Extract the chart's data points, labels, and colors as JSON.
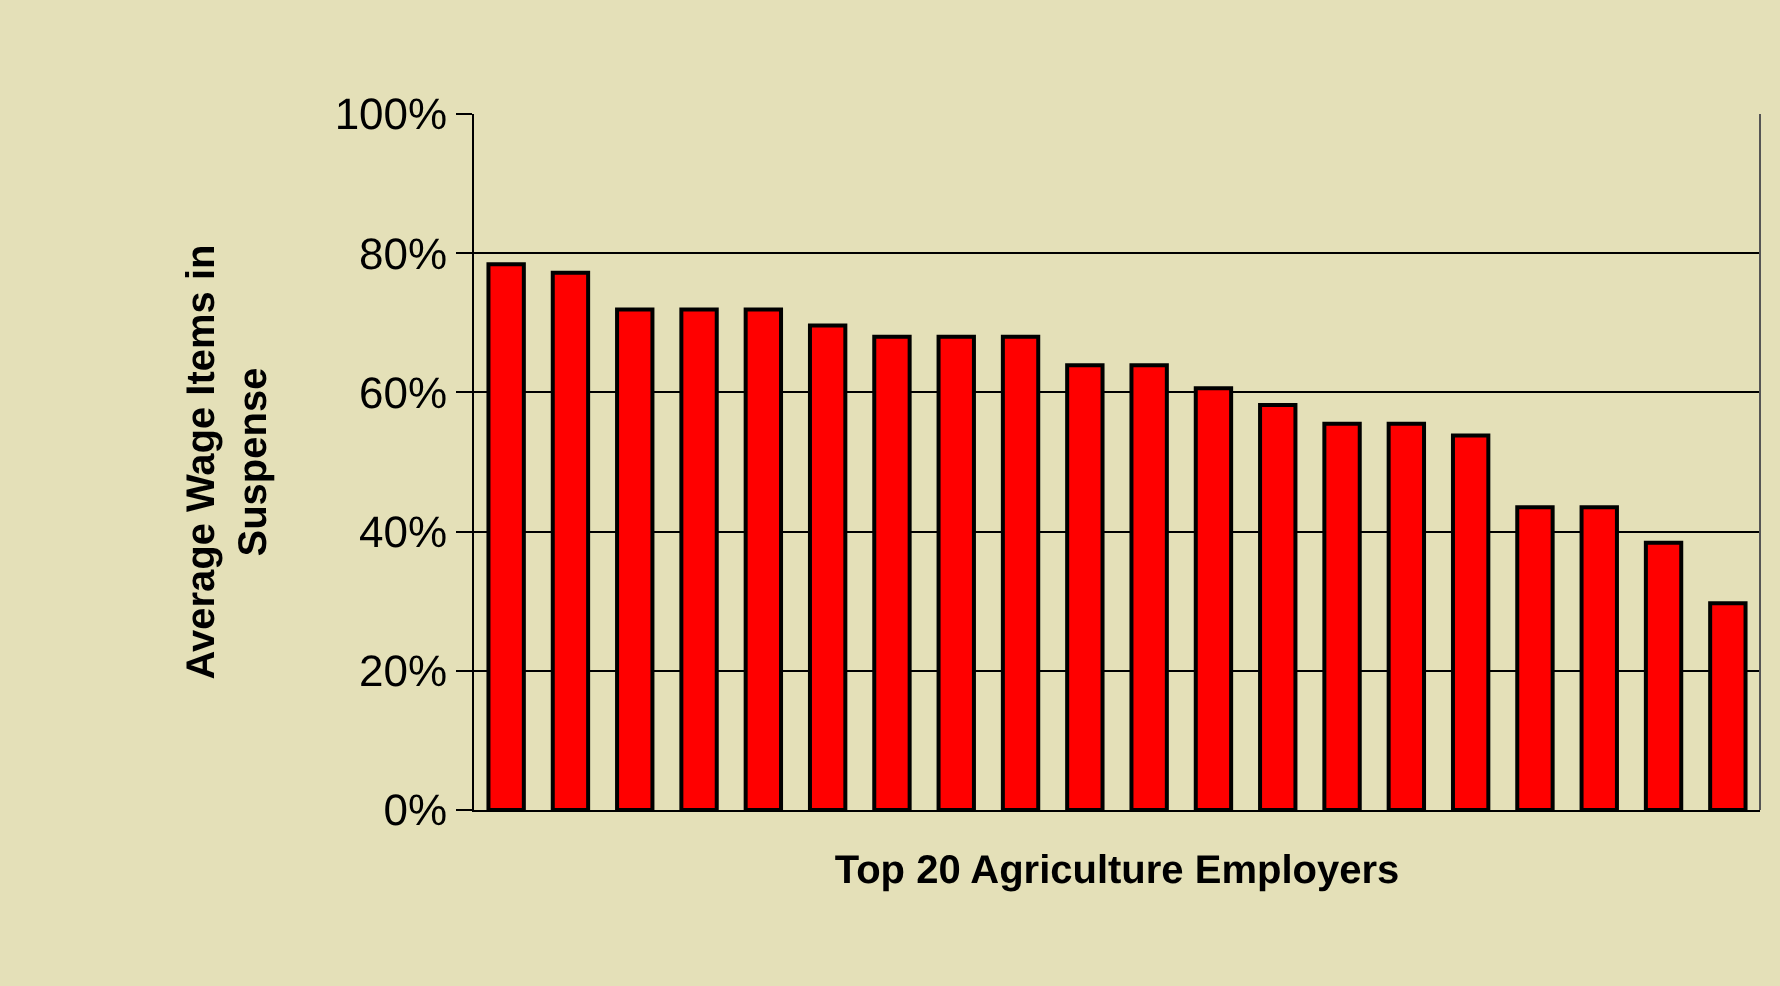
{
  "chart_data": {
    "type": "bar",
    "xlabel": "Top 20 Agriculture Employers",
    "ylabel": "Average Wage Items in Suspense",
    "categories": [
      null,
      null,
      null,
      null,
      null,
      null,
      null,
      null,
      null,
      null,
      null,
      null,
      null,
      null,
      null,
      null,
      null,
      null,
      null,
      null
    ],
    "values": [
      78.4,
      77.2,
      71.9,
      71.9,
      71.9,
      69.6,
      68,
      68,
      68,
      63.9,
      63.9,
      60.6,
      58.2,
      55.5,
      55.5,
      53.8,
      43.5,
      43.5,
      38.4,
      29.7
    ],
    "color": "#ff0000",
    "ylim": [
      0,
      100
    ],
    "yticks": [
      {
        "value": 0,
        "label": "0%"
      },
      {
        "value": 20,
        "label": "20%"
      },
      {
        "value": 40,
        "label": "40%"
      },
      {
        "value": 60,
        "label": "60%"
      },
      {
        "value": 80,
        "label": "80%"
      },
      {
        "value": 100,
        "label": "100%"
      }
    ],
    "grid": "y",
    "tick_labels": "y"
  }
}
